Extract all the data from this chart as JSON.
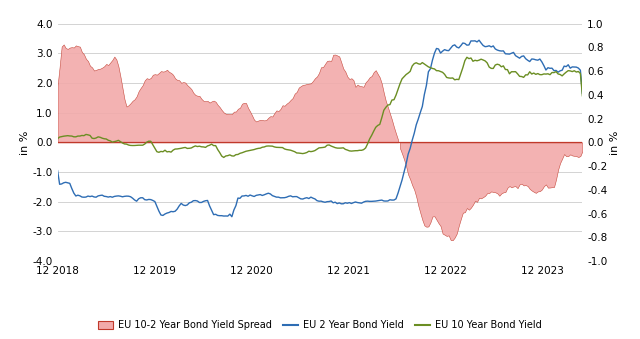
{
  "left_ylabel": "in %",
  "right_ylabel": "in %",
  "left_ylim": [
    -4.0,
    4.0
  ],
  "right_ylim": [
    -1.0,
    1.0
  ],
  "left_yticks": [
    -4.0,
    -3.0,
    -2.0,
    -1.0,
    0.0,
    1.0,
    2.0,
    3.0,
    4.0
  ],
  "left_yticklabels": [
    "-4.0",
    "-3.0",
    "-2.0",
    "-1.0",
    "0.0",
    "1.0",
    "2.0",
    "3.0",
    "4.0"
  ],
  "right_yticks": [
    -1.0,
    -0.8,
    -0.6,
    -0.4,
    -0.2,
    0.0,
    0.2,
    0.4,
    0.6,
    0.8,
    1.0
  ],
  "right_yticklabels": [
    "-1.0",
    "-0.8",
    "-0.6",
    "-0.4",
    "-0.2",
    "0.0",
    "0.2",
    "0.4",
    "0.6",
    "0.8",
    "1.0"
  ],
  "xtick_labels": [
    "12 2018",
    "12 2019",
    "12 2020",
    "12 2021",
    "12 2022",
    "12 2023"
  ],
  "spread_color": "#f2aaaa",
  "spread_edge_color": "#c0392b",
  "line2y_color": "#2e6db4",
  "line10y_color": "#6b8e23",
  "bg_color": "#ffffff",
  "grid_color": "#cccccc",
  "legend_labels": [
    "EU 10-2 Year Bond Yield Spread",
    "EU 2 Year Bond Yield",
    "EU 10 Year Bond Yield"
  ],
  "figsize": [
    6.4,
    3.39
  ],
  "dpi": 100
}
